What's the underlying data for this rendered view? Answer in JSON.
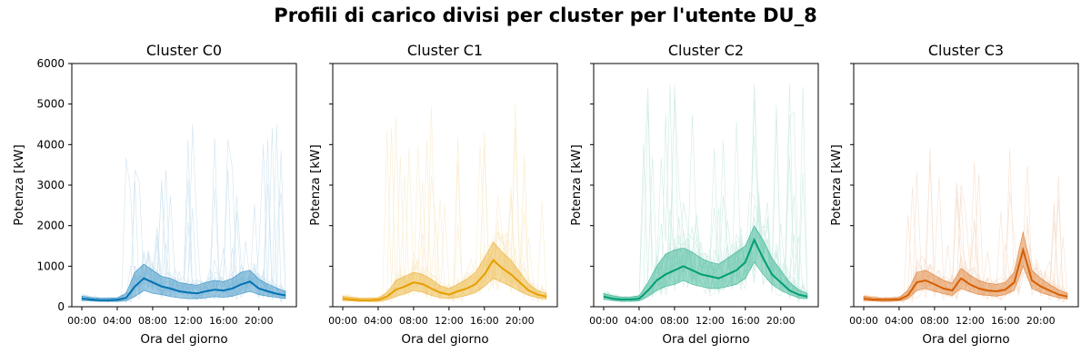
{
  "figure": {
    "title": "Profili di carico divisi per cluster per l'utente DU_8"
  },
  "chart_data": [
    {
      "type": "line",
      "title": "Cluster C0",
      "xlabel": "Ora del giorno",
      "ylabel": "Potenza [kW]",
      "color": "#0072B2",
      "xlim": [
        0,
        24
      ],
      "ylim": [
        0,
        6000
      ],
      "x_ticks": [
        "00:00",
        "04:00",
        "08:00",
        "12:00",
        "16:00",
        "20:00"
      ],
      "y_ticks": [
        0,
        1000,
        2000,
        3000,
        4000,
        5000,
        6000
      ],
      "show_y_ticklabels": true,
      "mean": [
        [
          0,
          200
        ],
        [
          1,
          180
        ],
        [
          2,
          160
        ],
        [
          3,
          160
        ],
        [
          4,
          170
        ],
        [
          5,
          220
        ],
        [
          6,
          500
        ],
        [
          7,
          700
        ],
        [
          8,
          600
        ],
        [
          9,
          500
        ],
        [
          10,
          450
        ],
        [
          11,
          380
        ],
        [
          12,
          350
        ],
        [
          13,
          330
        ],
        [
          14,
          380
        ],
        [
          15,
          420
        ],
        [
          16,
          400
        ],
        [
          17,
          450
        ],
        [
          18,
          550
        ],
        [
          19,
          620
        ],
        [
          20,
          450
        ],
        [
          21,
          380
        ],
        [
          22,
          320
        ],
        [
          23,
          280
        ]
      ],
      "band_low": [
        [
          0,
          150
        ],
        [
          1,
          140
        ],
        [
          2,
          130
        ],
        [
          3,
          130
        ],
        [
          4,
          130
        ],
        [
          5,
          150
        ],
        [
          6,
          250
        ],
        [
          7,
          400
        ],
        [
          8,
          330
        ],
        [
          9,
          300
        ],
        [
          10,
          250
        ],
        [
          11,
          220
        ],
        [
          12,
          200
        ],
        [
          13,
          200
        ],
        [
          14,
          220
        ],
        [
          15,
          250
        ],
        [
          16,
          230
        ],
        [
          17,
          260
        ],
        [
          18,
          320
        ],
        [
          19,
          380
        ],
        [
          20,
          300
        ],
        [
          21,
          260
        ],
        [
          22,
          230
        ],
        [
          23,
          200
        ]
      ],
      "band_high": [
        [
          0,
          260
        ],
        [
          1,
          230
        ],
        [
          2,
          210
        ],
        [
          3,
          210
        ],
        [
          4,
          220
        ],
        [
          5,
          330
        ],
        [
          6,
          850
        ],
        [
          7,
          1050
        ],
        [
          8,
          900
        ],
        [
          9,
          750
        ],
        [
          10,
          700
        ],
        [
          11,
          600
        ],
        [
          12,
          560
        ],
        [
          13,
          530
        ],
        [
          14,
          600
        ],
        [
          15,
          650
        ],
        [
          16,
          620
        ],
        [
          17,
          700
        ],
        [
          18,
          850
        ],
        [
          19,
          900
        ],
        [
          20,
          680
        ],
        [
          21,
          560
        ],
        [
          22,
          460
        ],
        [
          23,
          380
        ]
      ],
      "max_spike": 4500
    },
    {
      "type": "line",
      "title": "Cluster C1",
      "xlabel": "Ora del giorno",
      "ylabel": "Potenza [kW]",
      "color": "#E69F00",
      "xlim": [
        0,
        24
      ],
      "ylim": [
        0,
        6000
      ],
      "x_ticks": [
        "00:00",
        "04:00",
        "08:00",
        "12:00",
        "16:00",
        "20:00"
      ],
      "y_ticks": [
        0,
        1000,
        2000,
        3000,
        4000,
        5000,
        6000
      ],
      "show_y_ticklabels": false,
      "mean": [
        [
          0,
          200
        ],
        [
          1,
          180
        ],
        [
          2,
          160
        ],
        [
          3,
          160
        ],
        [
          4,
          170
        ],
        [
          5,
          250
        ],
        [
          6,
          420
        ],
        [
          7,
          500
        ],
        [
          8,
          600
        ],
        [
          9,
          560
        ],
        [
          10,
          450
        ],
        [
          11,
          350
        ],
        [
          12,
          300
        ],
        [
          13,
          380
        ],
        [
          14,
          450
        ],
        [
          15,
          560
        ],
        [
          16,
          800
        ],
        [
          17,
          1150
        ],
        [
          18,
          950
        ],
        [
          19,
          800
        ],
        [
          20,
          600
        ],
        [
          21,
          400
        ],
        [
          22,
          300
        ],
        [
          23,
          250
        ]
      ],
      "band_low": [
        [
          0,
          150
        ],
        [
          1,
          140
        ],
        [
          2,
          130
        ],
        [
          3,
          130
        ],
        [
          4,
          130
        ],
        [
          5,
          170
        ],
        [
          6,
          250
        ],
        [
          7,
          320
        ],
        [
          8,
          400
        ],
        [
          9,
          360
        ],
        [
          10,
          280
        ],
        [
          11,
          220
        ],
        [
          12,
          200
        ],
        [
          13,
          230
        ],
        [
          14,
          280
        ],
        [
          15,
          350
        ],
        [
          16,
          500
        ],
        [
          17,
          700
        ],
        [
          18,
          600
        ],
        [
          19,
          500
        ],
        [
          20,
          380
        ],
        [
          21,
          280
        ],
        [
          22,
          220
        ],
        [
          23,
          190
        ]
      ],
      "band_high": [
        [
          0,
          260
        ],
        [
          1,
          230
        ],
        [
          2,
          210
        ],
        [
          3,
          210
        ],
        [
          4,
          220
        ],
        [
          5,
          350
        ],
        [
          6,
          650
        ],
        [
          7,
          750
        ],
        [
          8,
          850
        ],
        [
          9,
          800
        ],
        [
          10,
          680
        ],
        [
          11,
          520
        ],
        [
          12,
          450
        ],
        [
          13,
          560
        ],
        [
          14,
          680
        ],
        [
          15,
          850
        ],
        [
          16,
          1200
        ],
        [
          17,
          1600
        ],
        [
          18,
          1350
        ],
        [
          19,
          1150
        ],
        [
          20,
          850
        ],
        [
          21,
          560
        ],
        [
          22,
          400
        ],
        [
          23,
          330
        ]
      ],
      "max_spike": 5000
    },
    {
      "type": "line",
      "title": "Cluster C2",
      "xlabel": "Ora del giorno",
      "ylabel": "Potenza [kW]",
      "color": "#009E73",
      "xlim": [
        0,
        24
      ],
      "ylim": [
        0,
        6000
      ],
      "x_ticks": [
        "00:00",
        "04:00",
        "08:00",
        "12:00",
        "16:00",
        "20:00"
      ],
      "y_ticks": [
        0,
        1000,
        2000,
        3000,
        4000,
        5000,
        6000
      ],
      "show_y_ticklabels": false,
      "mean": [
        [
          0,
          250
        ],
        [
          1,
          200
        ],
        [
          2,
          180
        ],
        [
          3,
          180
        ],
        [
          4,
          200
        ],
        [
          5,
          400
        ],
        [
          6,
          650
        ],
        [
          7,
          800
        ],
        [
          8,
          900
        ],
        [
          9,
          1000
        ],
        [
          10,
          900
        ],
        [
          11,
          800
        ],
        [
          12,
          750
        ],
        [
          13,
          700
        ],
        [
          14,
          800
        ],
        [
          15,
          900
        ],
        [
          16,
          1100
        ],
        [
          17,
          1650
        ],
        [
          18,
          1200
        ],
        [
          19,
          800
        ],
        [
          20,
          600
        ],
        [
          21,
          400
        ],
        [
          22,
          300
        ],
        [
          23,
          250
        ]
      ],
      "band_low": [
        [
          0,
          180
        ],
        [
          1,
          150
        ],
        [
          2,
          130
        ],
        [
          3,
          130
        ],
        [
          4,
          140
        ],
        [
          5,
          250
        ],
        [
          6,
          400
        ],
        [
          7,
          500
        ],
        [
          8,
          550
        ],
        [
          9,
          650
        ],
        [
          10,
          550
        ],
        [
          11,
          500
        ],
        [
          12,
          450
        ],
        [
          13,
          450
        ],
        [
          14,
          500
        ],
        [
          15,
          550
        ],
        [
          16,
          700
        ],
        [
          17,
          1100
        ],
        [
          18,
          800
        ],
        [
          19,
          550
        ],
        [
          20,
          400
        ],
        [
          21,
          300
        ],
        [
          22,
          220
        ],
        [
          23,
          200
        ]
      ],
      "band_high": [
        [
          0,
          330
        ],
        [
          1,
          270
        ],
        [
          2,
          240
        ],
        [
          3,
          240
        ],
        [
          4,
          270
        ],
        [
          5,
          600
        ],
        [
          6,
          1000
        ],
        [
          7,
          1300
        ],
        [
          8,
          1400
        ],
        [
          9,
          1450
        ],
        [
          10,
          1350
        ],
        [
          11,
          1200
        ],
        [
          12,
          1100
        ],
        [
          13,
          1050
        ],
        [
          14,
          1200
        ],
        [
          15,
          1350
        ],
        [
          16,
          1500
        ],
        [
          17,
          2000
        ],
        [
          18,
          1650
        ],
        [
          19,
          1200
        ],
        [
          20,
          900
        ],
        [
          21,
          600
        ],
        [
          22,
          420
        ],
        [
          23,
          330
        ]
      ],
      "max_spike": 5500
    },
    {
      "type": "line",
      "title": "Cluster C3",
      "xlabel": "Ora del giorno",
      "ylabel": "Potenza [kW]",
      "color": "#D55E00",
      "xlim": [
        0,
        24
      ],
      "ylim": [
        0,
        6000
      ],
      "x_ticks": [
        "00:00",
        "04:00",
        "08:00",
        "12:00",
        "16:00",
        "20:00"
      ],
      "y_ticks": [
        0,
        1000,
        2000,
        3000,
        4000,
        5000,
        6000
      ],
      "show_y_ticklabels": false,
      "mean": [
        [
          0,
          200
        ],
        [
          1,
          180
        ],
        [
          2,
          170
        ],
        [
          3,
          170
        ],
        [
          4,
          180
        ],
        [
          5,
          280
        ],
        [
          6,
          600
        ],
        [
          7,
          650
        ],
        [
          8,
          550
        ],
        [
          9,
          450
        ],
        [
          10,
          400
        ],
        [
          11,
          700
        ],
        [
          12,
          550
        ],
        [
          13,
          450
        ],
        [
          14,
          400
        ],
        [
          15,
          380
        ],
        [
          16,
          420
        ],
        [
          17,
          600
        ],
        [
          18,
          1400
        ],
        [
          19,
          650
        ],
        [
          20,
          500
        ],
        [
          21,
          400
        ],
        [
          22,
          300
        ],
        [
          23,
          250
        ]
      ],
      "band_low": [
        [
          0,
          150
        ],
        [
          1,
          140
        ],
        [
          2,
          130
        ],
        [
          3,
          130
        ],
        [
          4,
          140
        ],
        [
          5,
          200
        ],
        [
          6,
          400
        ],
        [
          7,
          450
        ],
        [
          8,
          380
        ],
        [
          9,
          320
        ],
        [
          10,
          280
        ],
        [
          11,
          450
        ],
        [
          12,
          370
        ],
        [
          13,
          300
        ],
        [
          14,
          280
        ],
        [
          15,
          260
        ],
        [
          16,
          300
        ],
        [
          17,
          400
        ],
        [
          18,
          1000
        ],
        [
          19,
          450
        ],
        [
          20,
          350
        ],
        [
          21,
          280
        ],
        [
          22,
          220
        ],
        [
          23,
          190
        ]
      ],
      "band_high": [
        [
          0,
          260
        ],
        [
          1,
          230
        ],
        [
          2,
          210
        ],
        [
          3,
          210
        ],
        [
          4,
          230
        ],
        [
          5,
          400
        ],
        [
          6,
          850
        ],
        [
          7,
          900
        ],
        [
          8,
          780
        ],
        [
          9,
          650
        ],
        [
          10,
          580
        ],
        [
          11,
          950
        ],
        [
          12,
          780
        ],
        [
          13,
          650
        ],
        [
          14,
          580
        ],
        [
          15,
          550
        ],
        [
          16,
          600
        ],
        [
          17,
          850
        ],
        [
          18,
          1850
        ],
        [
          19,
          900
        ],
        [
          20,
          700
        ],
        [
          21,
          550
        ],
        [
          22,
          420
        ],
        [
          23,
          330
        ]
      ],
      "max_spike": 3900
    }
  ]
}
